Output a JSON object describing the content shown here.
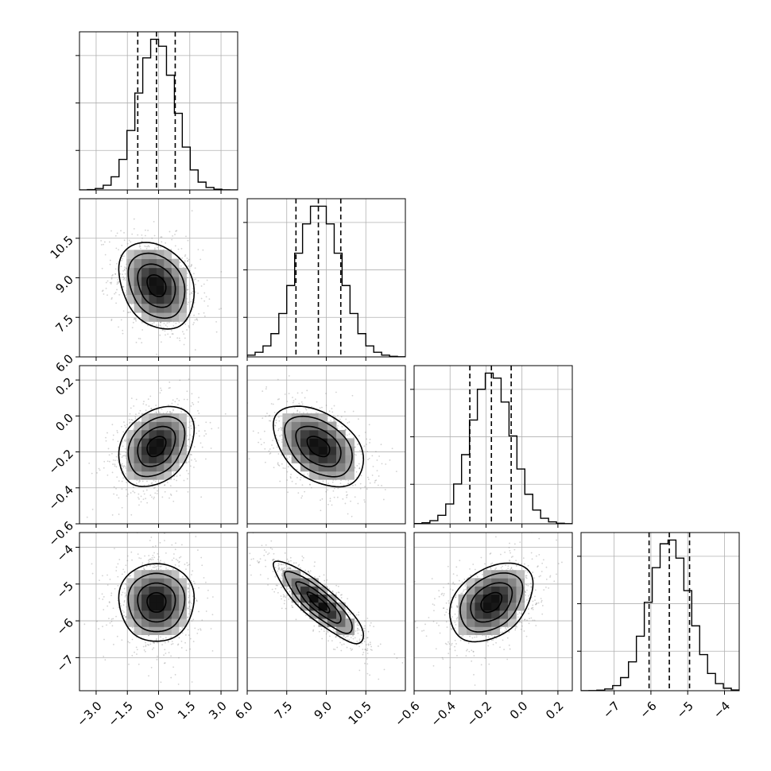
{
  "chart_data": {
    "type": "corner",
    "grid": true,
    "colors": {
      "line": "#000000",
      "grid": "#b0b0b0",
      "scatter": "#7f7f7f"
    },
    "params": [
      {
        "index": 0,
        "range": [
          -3.8,
          3.8
        ],
        "ticks": [
          -3.0,
          -1.5,
          0.0,
          1.5,
          3.0
        ],
        "tick_labels": [
          "−3.0",
          "−1.5",
          "0.0",
          "1.5",
          "3.0"
        ],
        "quantiles": [
          -1.0,
          -0.1,
          0.8
        ],
        "mean": -0.1,
        "sd": 0.9
      },
      {
        "index": 1,
        "range": [
          6.0,
          12.0
        ],
        "ticks": [
          6.0,
          7.5,
          9.0,
          10.5
        ],
        "tick_labels": [
          "6.0",
          "7.5",
          "9.0",
          "10.5"
        ],
        "quantiles": [
          7.85,
          8.7,
          9.55
        ],
        "mean": 8.7,
        "sd": 0.85
      },
      {
        "index": 2,
        "range": [
          -0.6,
          0.28
        ],
        "ticks": [
          -0.6,
          -0.4,
          -0.2,
          0.0,
          0.2
        ],
        "tick_labels": [
          "−0.6",
          "−0.4",
          "−0.2",
          "0.0",
          "0.2"
        ],
        "quantiles": [
          -0.29,
          -0.17,
          -0.06
        ],
        "mean": -0.17,
        "sd": 0.115
      },
      {
        "index": 3,
        "range": [
          -7.9,
          -3.6
        ],
        "ticks": [
          -7,
          -6,
          -5,
          -4
        ],
        "tick_labels": [
          "−7",
          "−6",
          "−5",
          "−4"
        ],
        "quantiles": [
          -6.05,
          -5.5,
          -4.95
        ],
        "mean": -5.5,
        "sd": 0.55
      }
    ],
    "correlations": [
      {
        "pair": [
          1,
          0
        ],
        "rho": -0.25
      },
      {
        "pair": [
          2,
          0
        ],
        "rho": 0.3
      },
      {
        "pair": [
          2,
          1
        ],
        "rho": -0.4
      },
      {
        "pair": [
          3,
          0
        ],
        "rho": 0.0
      },
      {
        "pair": [
          3,
          1
        ],
        "rho": -0.85
      },
      {
        "pair": [
          3,
          2
        ],
        "rho": 0.35
      }
    ],
    "histogram_bins": 20,
    "contour_levels_sigma": [
      0.5,
      1.0,
      1.5,
      2.0
    ]
  }
}
